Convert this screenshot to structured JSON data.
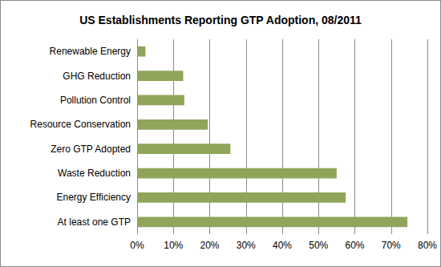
{
  "chart_data": {
    "type": "bar",
    "orientation": "horizontal",
    "title": "US Establishments Reporting GTP Adoption, 08/2011",
    "categories": [
      "Renewable Energy",
      "GHG Reduction",
      "Pollution Control",
      "Resource Conservation",
      "Zero GTP Adopted",
      "Waste Reduction",
      "Energy Efficiency",
      "At least one GTP"
    ],
    "values": [
      2.3,
      12.7,
      13,
      19.5,
      25.7,
      55,
      57.5,
      74.5
    ],
    "color": "#8fa55a",
    "xlim": [
      0,
      80
    ],
    "xticks": [
      {
        "value": 0,
        "label": "0%"
      },
      {
        "value": 10,
        "label": "10%"
      },
      {
        "value": 20,
        "label": "20%"
      },
      {
        "value": 30,
        "label": "30%"
      },
      {
        "value": 40,
        "label": "40%"
      },
      {
        "value": 50,
        "label": "50%"
      },
      {
        "value": 60,
        "label": "60%"
      },
      {
        "value": 70,
        "label": "70%"
      },
      {
        "value": 80,
        "label": "80%"
      }
    ],
    "grid": true
  }
}
